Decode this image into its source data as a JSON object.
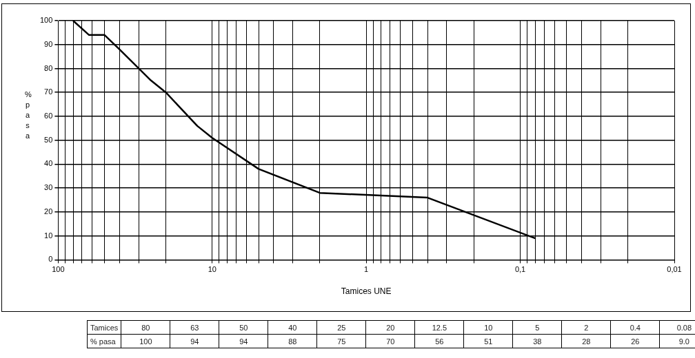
{
  "chart_data": [
    {
      "type": "line",
      "xlabel": "Tamices UNE",
      "ylabel": "% pasa",
      "x": [
        80,
        63,
        50,
        40,
        25,
        20,
        12.5,
        10,
        5,
        2,
        0.4,
        0.08
      ],
      "series": [
        {
          "color": "#000000",
          "values": [
            100,
            94,
            94,
            88,
            75,
            70,
            56,
            51,
            38,
            28,
            26,
            9.0
          ]
        }
      ],
      "log": "x",
      "xlim": [
        100,
        0.01
      ],
      "ylim": [
        0,
        100
      ],
      "xticks": [
        100,
        {
          "value": 90,
          "label": null
        },
        {
          "value": 80,
          "label": null
        },
        {
          "value": 70,
          "label": null
        },
        {
          "value": 60,
          "label": null
        },
        {
          "value": 50,
          "label": null
        },
        {
          "value": 40,
          "label": null
        },
        {
          "value": 30,
          "label": null
        },
        {
          "value": 20,
          "label": null
        },
        10,
        {
          "value": 9,
          "label": null
        },
        {
          "value": 8,
          "label": null
        },
        {
          "value": 7,
          "label": null
        },
        {
          "value": 6,
          "label": null
        },
        {
          "value": 5,
          "label": null
        },
        {
          "value": 4,
          "label": null
        },
        {
          "value": 3,
          "label": null
        },
        {
          "value": 2,
          "label": null
        },
        1,
        {
          "value": 0.9,
          "label": null
        },
        {
          "value": 0.8,
          "label": null
        },
        {
          "value": 0.7,
          "label": null
        },
        {
          "value": 0.6,
          "label": null
        },
        {
          "value": 0.5,
          "label": null
        },
        {
          "value": 0.4,
          "label": null
        },
        {
          "value": 0.3,
          "label": null
        },
        {
          "value": 0.2,
          "label": null
        },
        {
          "value": 0.1,
          "label": "0,1"
        },
        {
          "value": 0.09,
          "label": null
        },
        {
          "value": 0.08,
          "label": null
        },
        {
          "value": 0.07,
          "label": null
        },
        {
          "value": 0.06,
          "label": null
        },
        {
          "value": 0.05,
          "label": null
        },
        {
          "value": 0.04,
          "label": null
        },
        {
          "value": 0.03,
          "label": null
        },
        {
          "value": 0.02,
          "label": null
        },
        {
          "value": 0.01,
          "label": "0,01"
        }
      ],
      "yticks": [
        0,
        10,
        20,
        30,
        40,
        50,
        60,
        70,
        80,
        90,
        100
      ],
      "grid": true,
      "marker": "none",
      "line_style": "solid"
    },
    {
      "type": "other",
      "categories": [
        "80",
        "63",
        "50",
        "40",
        "25",
        "20",
        "12.5",
        "10",
        "5",
        "2",
        "0.4",
        "0.08"
      ],
      "value_labels": [
        "100",
        "94",
        "94",
        "88",
        "75",
        "70",
        "56",
        "51",
        "38",
        "28",
        "26",
        "9.0"
      ],
      "annotations": [
        "Tamices",
        "% pasa"
      ]
    }
  ]
}
